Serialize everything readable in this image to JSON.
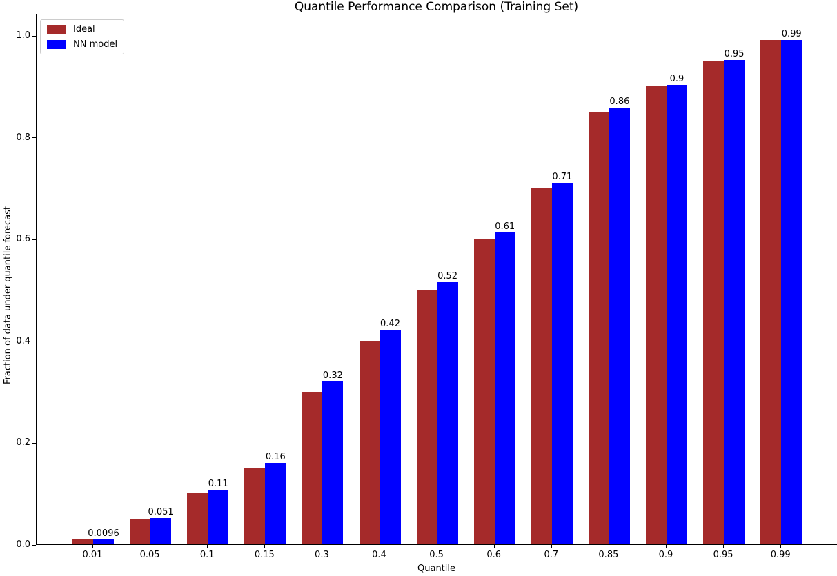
{
  "chart_data": {
    "type": "bar",
    "title": "Quantile Performance Comparison (Training Set)",
    "xlabel": "Quantile",
    "ylabel": "Fraction of data under quantile forecast",
    "categories": [
      "0.01",
      "0.05",
      "0.1",
      "0.15",
      "0.3",
      "0.4",
      "0.5",
      "0.6",
      "0.7",
      "0.85",
      "0.9",
      "0.95",
      "0.99"
    ],
    "series": [
      {
        "name": "Ideal",
        "color": "#a52a2a",
        "values": [
          0.01,
          0.05,
          0.1,
          0.15,
          0.3,
          0.4,
          0.5,
          0.6,
          0.7,
          0.85,
          0.9,
          0.95,
          0.99
        ]
      },
      {
        "name": "NN model",
        "color": "#0000ff",
        "values": [
          0.0096,
          0.051,
          0.107,
          0.16,
          0.32,
          0.421,
          0.515,
          0.612,
          0.71,
          0.858,
          0.902,
          0.951,
          0.99
        ]
      }
    ],
    "bar_labels": [
      "0.0096",
      "0.051",
      "0.11",
      "0.16",
      "0.32",
      "0.42",
      "0.52",
      "0.61",
      "0.71",
      "0.86",
      "0.9",
      "0.95",
      "0.99"
    ],
    "yticks": [
      "0.0",
      "0.2",
      "0.4",
      "0.6",
      "0.8",
      "1.0"
    ],
    "ylim": [
      0,
      1.043
    ],
    "grid": false,
    "legend_position": "upper-left"
  }
}
